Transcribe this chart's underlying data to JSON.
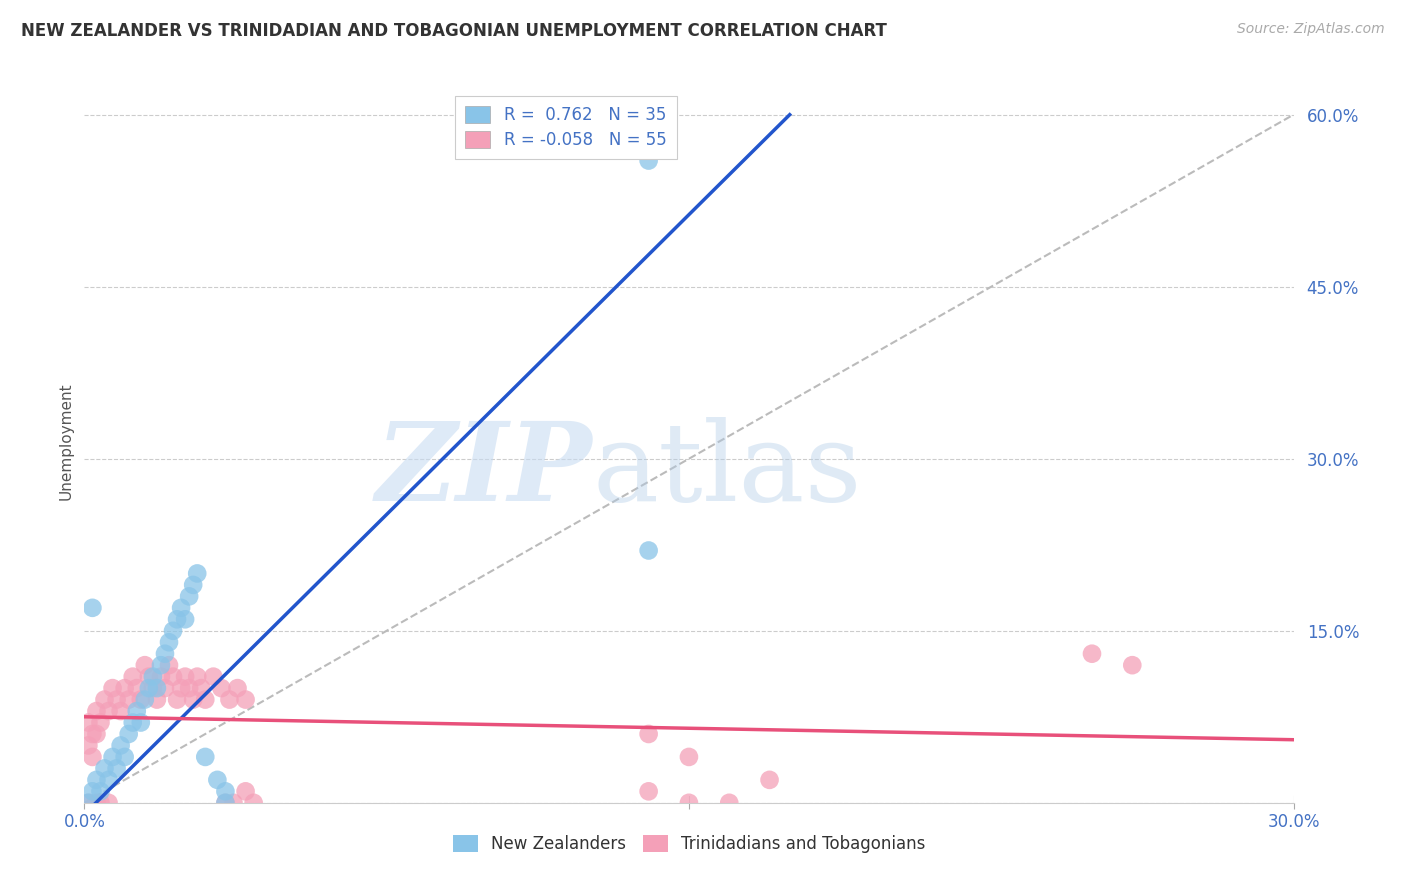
{
  "title": "NEW ZEALANDER VS TRINIDADIAN AND TOBAGONIAN UNEMPLOYMENT CORRELATION CHART",
  "source": "Source: ZipAtlas.com",
  "ylabel_label": "Unemployment",
  "color_nz": "#89C4E8",
  "color_tt": "#F4A0B8",
  "line_color_nz": "#2255CC",
  "line_color_tt": "#E8507A",
  "dash_color": "#BBBBBB",
  "xmin": 0.0,
  "xmax": 0.3,
  "ymin": 0.0,
  "ymax": 0.63,
  "grid_yticks": [
    0.0,
    0.15,
    0.3,
    0.45,
    0.6
  ],
  "right_yticklabels": [
    "",
    "15.0%",
    "30.0%",
    "45.0%",
    "60.0%"
  ],
  "nz_line_x": [
    0.0,
    0.175
  ],
  "nz_line_y": [
    -0.01,
    0.6
  ],
  "tt_line_x": [
    0.0,
    0.3
  ],
  "tt_line_y": [
    0.075,
    0.055
  ],
  "dash_line_x": [
    0.0,
    0.3
  ],
  "dash_line_y": [
    0.0,
    0.6
  ],
  "nz_points": [
    [
      0.001,
      0.0
    ],
    [
      0.002,
      0.01
    ],
    [
      0.003,
      0.02
    ],
    [
      0.004,
      0.01
    ],
    [
      0.005,
      0.03
    ],
    [
      0.006,
      0.02
    ],
    [
      0.007,
      0.04
    ],
    [
      0.008,
      0.03
    ],
    [
      0.009,
      0.05
    ],
    [
      0.01,
      0.04
    ],
    [
      0.011,
      0.06
    ],
    [
      0.012,
      0.07
    ],
    [
      0.013,
      0.08
    ],
    [
      0.014,
      0.07
    ],
    [
      0.015,
      0.09
    ],
    [
      0.016,
      0.1
    ],
    [
      0.017,
      0.11
    ],
    [
      0.018,
      0.1
    ],
    [
      0.019,
      0.12
    ],
    [
      0.02,
      0.13
    ],
    [
      0.021,
      0.14
    ],
    [
      0.022,
      0.15
    ],
    [
      0.023,
      0.16
    ],
    [
      0.024,
      0.17
    ],
    [
      0.025,
      0.16
    ],
    [
      0.026,
      0.18
    ],
    [
      0.027,
      0.19
    ],
    [
      0.028,
      0.2
    ],
    [
      0.03,
      0.04
    ],
    [
      0.033,
      0.02
    ],
    [
      0.035,
      0.01
    ],
    [
      0.002,
      0.17
    ],
    [
      0.14,
      0.56
    ],
    [
      0.14,
      0.22
    ],
    [
      0.035,
      0.0
    ]
  ],
  "tt_points": [
    [
      0.001,
      0.07
    ],
    [
      0.002,
      0.06
    ],
    [
      0.003,
      0.08
    ],
    [
      0.004,
      0.07
    ],
    [
      0.005,
      0.09
    ],
    [
      0.006,
      0.08
    ],
    [
      0.007,
      0.1
    ],
    [
      0.008,
      0.09
    ],
    [
      0.009,
      0.08
    ],
    [
      0.01,
      0.1
    ],
    [
      0.011,
      0.09
    ],
    [
      0.012,
      0.11
    ],
    [
      0.013,
      0.1
    ],
    [
      0.014,
      0.09
    ],
    [
      0.015,
      0.12
    ],
    [
      0.016,
      0.11
    ],
    [
      0.017,
      0.1
    ],
    [
      0.018,
      0.09
    ],
    [
      0.019,
      0.11
    ],
    [
      0.02,
      0.1
    ],
    [
      0.021,
      0.12
    ],
    [
      0.022,
      0.11
    ],
    [
      0.023,
      0.09
    ],
    [
      0.024,
      0.1
    ],
    [
      0.025,
      0.11
    ],
    [
      0.026,
      0.1
    ],
    [
      0.027,
      0.09
    ],
    [
      0.028,
      0.11
    ],
    [
      0.029,
      0.1
    ],
    [
      0.03,
      0.09
    ],
    [
      0.032,
      0.11
    ],
    [
      0.034,
      0.1
    ],
    [
      0.036,
      0.09
    ],
    [
      0.038,
      0.1
    ],
    [
      0.04,
      0.09
    ],
    [
      0.001,
      0.05
    ],
    [
      0.002,
      0.04
    ],
    [
      0.003,
      0.06
    ],
    [
      0.14,
      0.06
    ],
    [
      0.15,
      0.04
    ],
    [
      0.16,
      0.0
    ],
    [
      0.17,
      0.02
    ],
    [
      0.14,
      0.01
    ],
    [
      0.15,
      0.0
    ],
    [
      0.25,
      0.13
    ],
    [
      0.26,
      0.12
    ],
    [
      0.035,
      0.0
    ],
    [
      0.04,
      0.01
    ],
    [
      0.001,
      0.0
    ],
    [
      0.003,
      0.0
    ],
    [
      0.004,
      0.0
    ],
    [
      0.006,
      0.0
    ],
    [
      0.037,
      0.0
    ],
    [
      0.042,
      0.0
    ]
  ]
}
